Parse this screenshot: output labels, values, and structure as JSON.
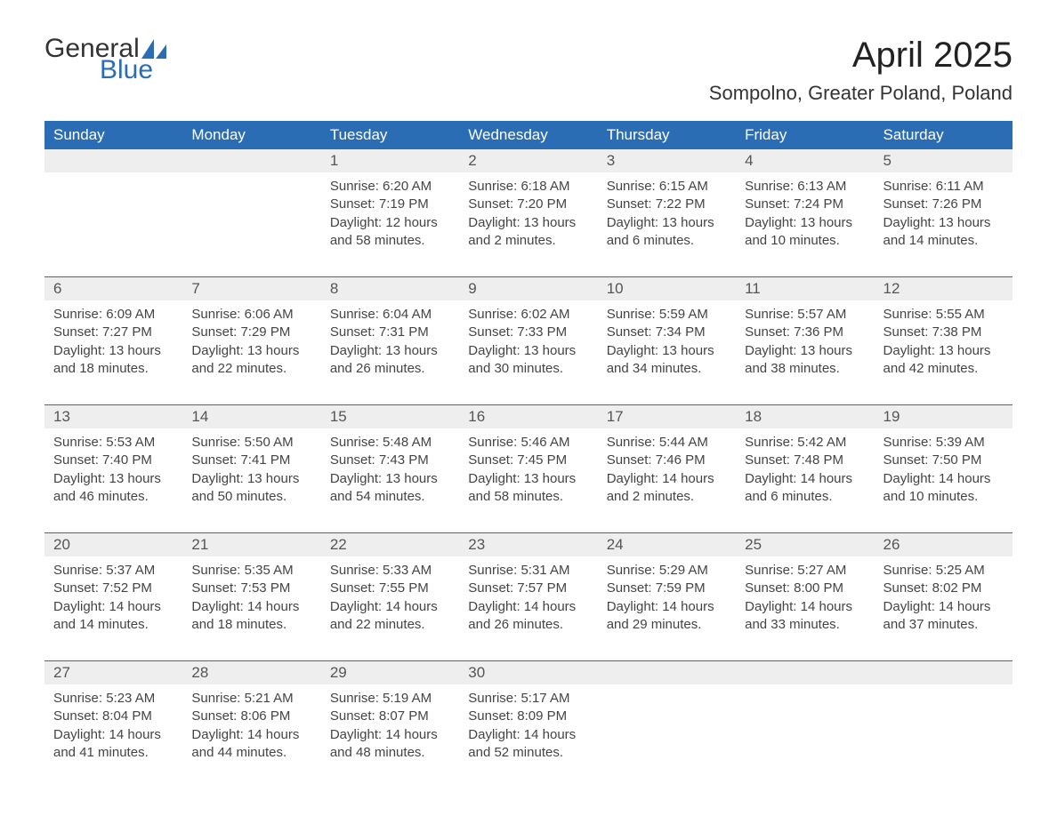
{
  "logo": {
    "text_general": "General",
    "text_blue": "Blue",
    "sail_color": "#2a6db5"
  },
  "title": "April 2025",
  "location": "Sompolno, Greater Poland, Poland",
  "colors": {
    "header_bg": "#2a6db5",
    "daynum_bg": "#eeeeee",
    "week_border": "#2a6db5",
    "text": "#333333"
  },
  "day_headers": [
    "Sunday",
    "Monday",
    "Tuesday",
    "Wednesday",
    "Thursday",
    "Friday",
    "Saturday"
  ],
  "weeks": [
    [
      {
        "n": "",
        "sunrise": "",
        "sunset": "",
        "daylight": ""
      },
      {
        "n": "",
        "sunrise": "",
        "sunset": "",
        "daylight": ""
      },
      {
        "n": "1",
        "sunrise": "Sunrise: 6:20 AM",
        "sunset": "Sunset: 7:19 PM",
        "daylight": "Daylight: 12 hours and 58 minutes."
      },
      {
        "n": "2",
        "sunrise": "Sunrise: 6:18 AM",
        "sunset": "Sunset: 7:20 PM",
        "daylight": "Daylight: 13 hours and 2 minutes."
      },
      {
        "n": "3",
        "sunrise": "Sunrise: 6:15 AM",
        "sunset": "Sunset: 7:22 PM",
        "daylight": "Daylight: 13 hours and 6 minutes."
      },
      {
        "n": "4",
        "sunrise": "Sunrise: 6:13 AM",
        "sunset": "Sunset: 7:24 PM",
        "daylight": "Daylight: 13 hours and 10 minutes."
      },
      {
        "n": "5",
        "sunrise": "Sunrise: 6:11 AM",
        "sunset": "Sunset: 7:26 PM",
        "daylight": "Daylight: 13 hours and 14 minutes."
      }
    ],
    [
      {
        "n": "6",
        "sunrise": "Sunrise: 6:09 AM",
        "sunset": "Sunset: 7:27 PM",
        "daylight": "Daylight: 13 hours and 18 minutes."
      },
      {
        "n": "7",
        "sunrise": "Sunrise: 6:06 AM",
        "sunset": "Sunset: 7:29 PM",
        "daylight": "Daylight: 13 hours and 22 minutes."
      },
      {
        "n": "8",
        "sunrise": "Sunrise: 6:04 AM",
        "sunset": "Sunset: 7:31 PM",
        "daylight": "Daylight: 13 hours and 26 minutes."
      },
      {
        "n": "9",
        "sunrise": "Sunrise: 6:02 AM",
        "sunset": "Sunset: 7:33 PM",
        "daylight": "Daylight: 13 hours and 30 minutes."
      },
      {
        "n": "10",
        "sunrise": "Sunrise: 5:59 AM",
        "sunset": "Sunset: 7:34 PM",
        "daylight": "Daylight: 13 hours and 34 minutes."
      },
      {
        "n": "11",
        "sunrise": "Sunrise: 5:57 AM",
        "sunset": "Sunset: 7:36 PM",
        "daylight": "Daylight: 13 hours and 38 minutes."
      },
      {
        "n": "12",
        "sunrise": "Sunrise: 5:55 AM",
        "sunset": "Sunset: 7:38 PM",
        "daylight": "Daylight: 13 hours and 42 minutes."
      }
    ],
    [
      {
        "n": "13",
        "sunrise": "Sunrise: 5:53 AM",
        "sunset": "Sunset: 7:40 PM",
        "daylight": "Daylight: 13 hours and 46 minutes."
      },
      {
        "n": "14",
        "sunrise": "Sunrise: 5:50 AM",
        "sunset": "Sunset: 7:41 PM",
        "daylight": "Daylight: 13 hours and 50 minutes."
      },
      {
        "n": "15",
        "sunrise": "Sunrise: 5:48 AM",
        "sunset": "Sunset: 7:43 PM",
        "daylight": "Daylight: 13 hours and 54 minutes."
      },
      {
        "n": "16",
        "sunrise": "Sunrise: 5:46 AM",
        "sunset": "Sunset: 7:45 PM",
        "daylight": "Daylight: 13 hours and 58 minutes."
      },
      {
        "n": "17",
        "sunrise": "Sunrise: 5:44 AM",
        "sunset": "Sunset: 7:46 PM",
        "daylight": "Daylight: 14 hours and 2 minutes."
      },
      {
        "n": "18",
        "sunrise": "Sunrise: 5:42 AM",
        "sunset": "Sunset: 7:48 PM",
        "daylight": "Daylight: 14 hours and 6 minutes."
      },
      {
        "n": "19",
        "sunrise": "Sunrise: 5:39 AM",
        "sunset": "Sunset: 7:50 PM",
        "daylight": "Daylight: 14 hours and 10 minutes."
      }
    ],
    [
      {
        "n": "20",
        "sunrise": "Sunrise: 5:37 AM",
        "sunset": "Sunset: 7:52 PM",
        "daylight": "Daylight: 14 hours and 14 minutes."
      },
      {
        "n": "21",
        "sunrise": "Sunrise: 5:35 AM",
        "sunset": "Sunset: 7:53 PM",
        "daylight": "Daylight: 14 hours and 18 minutes."
      },
      {
        "n": "22",
        "sunrise": "Sunrise: 5:33 AM",
        "sunset": "Sunset: 7:55 PM",
        "daylight": "Daylight: 14 hours and 22 minutes."
      },
      {
        "n": "23",
        "sunrise": "Sunrise: 5:31 AM",
        "sunset": "Sunset: 7:57 PM",
        "daylight": "Daylight: 14 hours and 26 minutes."
      },
      {
        "n": "24",
        "sunrise": "Sunrise: 5:29 AM",
        "sunset": "Sunset: 7:59 PM",
        "daylight": "Daylight: 14 hours and 29 minutes."
      },
      {
        "n": "25",
        "sunrise": "Sunrise: 5:27 AM",
        "sunset": "Sunset: 8:00 PM",
        "daylight": "Daylight: 14 hours and 33 minutes."
      },
      {
        "n": "26",
        "sunrise": "Sunrise: 5:25 AM",
        "sunset": "Sunset: 8:02 PM",
        "daylight": "Daylight: 14 hours and 37 minutes."
      }
    ],
    [
      {
        "n": "27",
        "sunrise": "Sunrise: 5:23 AM",
        "sunset": "Sunset: 8:04 PM",
        "daylight": "Daylight: 14 hours and 41 minutes."
      },
      {
        "n": "28",
        "sunrise": "Sunrise: 5:21 AM",
        "sunset": "Sunset: 8:06 PM",
        "daylight": "Daylight: 14 hours and 44 minutes."
      },
      {
        "n": "29",
        "sunrise": "Sunrise: 5:19 AM",
        "sunset": "Sunset: 8:07 PM",
        "daylight": "Daylight: 14 hours and 48 minutes."
      },
      {
        "n": "30",
        "sunrise": "Sunrise: 5:17 AM",
        "sunset": "Sunset: 8:09 PM",
        "daylight": "Daylight: 14 hours and 52 minutes."
      },
      {
        "n": "",
        "sunrise": "",
        "sunset": "",
        "daylight": ""
      },
      {
        "n": "",
        "sunrise": "",
        "sunset": "",
        "daylight": ""
      },
      {
        "n": "",
        "sunrise": "",
        "sunset": "",
        "daylight": ""
      }
    ]
  ]
}
